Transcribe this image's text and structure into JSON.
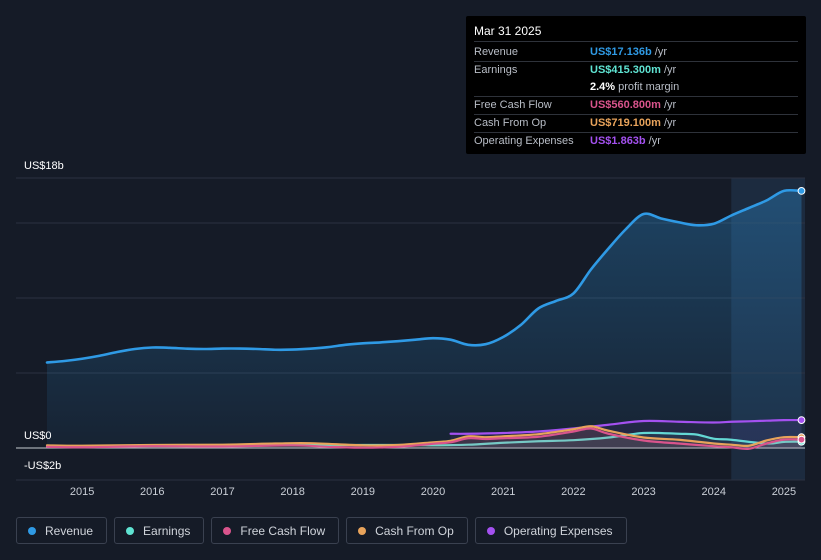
{
  "tooltip": {
    "date": "Mar 31 2025",
    "rows": [
      {
        "label": "Revenue",
        "value": "US$17.136b",
        "unit": "/yr",
        "color": "#2f9ae5"
      },
      {
        "label": "Earnings",
        "value": "US$415.300m",
        "unit": "/yr",
        "color": "#5fe3d2"
      },
      {
        "label": "",
        "value": "2.4%",
        "unit": "profit margin",
        "color": "#ffffff"
      },
      {
        "label": "Free Cash Flow",
        "value": "US$560.800m",
        "unit": "/yr",
        "color": "#d9548c"
      },
      {
        "label": "Cash From Op",
        "value": "US$719.100m",
        "unit": "/yr",
        "color": "#e8a35b"
      },
      {
        "label": "Operating Expenses",
        "value": "US$1.863b",
        "unit": "/yr",
        "color": "#a451f0"
      }
    ]
  },
  "legend": [
    {
      "label": "Revenue",
      "color": "#2f9ae5"
    },
    {
      "label": "Earnings",
      "color": "#5fe3d2"
    },
    {
      "label": "Free Cash Flow",
      "color": "#d9548c"
    },
    {
      "label": "Cash From Op",
      "color": "#e8a35b"
    },
    {
      "label": "Operating Expenses",
      "color": "#a451f0"
    }
  ],
  "chart_data": {
    "type": "line",
    "title": "",
    "xlabel": "",
    "ylabel": "",
    "y_axis_labels": {
      "top": "US$18b",
      "zero": "US$0",
      "bottom": "-US$2b"
    },
    "ylim": [
      -2,
      18
    ],
    "xlim": [
      2014.5,
      2025.3
    ],
    "x_ticks": [
      "2015",
      "2016",
      "2017",
      "2018",
      "2019",
      "2020",
      "2021",
      "2022",
      "2023",
      "2024",
      "2025"
    ],
    "forecast_shade_start": 2024.25,
    "series": [
      {
        "name": "Revenue",
        "color": "#2f9ae5",
        "area": true,
        "x": [
          2014.5,
          2014.75,
          2015,
          2015.25,
          2015.5,
          2015.75,
          2016,
          2016.25,
          2016.5,
          2016.75,
          2017,
          2017.25,
          2017.5,
          2017.75,
          2018,
          2018.25,
          2018.5,
          2018.75,
          2019,
          2019.25,
          2019.5,
          2019.75,
          2020,
          2020.25,
          2020.5,
          2020.75,
          2021,
          2021.25,
          2021.5,
          2021.75,
          2022,
          2022.25,
          2022.5,
          2022.75,
          2023,
          2023.25,
          2023.5,
          2023.75,
          2024,
          2024.25,
          2024.5,
          2024.75,
          2025,
          2025.25
        ],
        "y": [
          5.7,
          5.8,
          5.95,
          6.15,
          6.4,
          6.6,
          6.7,
          6.68,
          6.62,
          6.6,
          6.63,
          6.63,
          6.6,
          6.55,
          6.56,
          6.62,
          6.72,
          6.88,
          6.98,
          7.04,
          7.12,
          7.22,
          7.32,
          7.22,
          6.88,
          6.92,
          7.4,
          8.2,
          9.3,
          9.8,
          10.3,
          11.9,
          13.3,
          14.6,
          15.6,
          15.3,
          15.05,
          14.85,
          14.95,
          15.5,
          16.0,
          16.5,
          17.14,
          17.14
        ]
      },
      {
        "name": "Earnings",
        "color": "#5fe3d2",
        "x": [
          2014.5,
          2015,
          2016,
          2017,
          2018,
          2019,
          2019.75,
          2020,
          2020.5,
          2021,
          2021.5,
          2022,
          2022.5,
          2023,
          2023.5,
          2023.75,
          2024,
          2024.25,
          2024.75,
          2025,
          2025.25
        ],
        "y": [
          0.12,
          0.13,
          0.15,
          0.17,
          0.19,
          0.2,
          0.2,
          0.18,
          0.22,
          0.35,
          0.45,
          0.52,
          0.7,
          1.0,
          0.95,
          0.9,
          0.62,
          0.55,
          0.3,
          0.41,
          0.42
        ]
      },
      {
        "name": "Free Cash Flow",
        "color": "#d9548c",
        "x": [
          2014.5,
          2015,
          2016,
          2017,
          2018,
          2018.5,
          2019,
          2019.5,
          2020,
          2020.25,
          2020.5,
          2020.75,
          2021,
          2021.5,
          2022,
          2022.25,
          2022.5,
          2023,
          2023.5,
          2024,
          2024.25,
          2024.5,
          2024.75,
          2025,
          2025.25
        ],
        "y": [
          0.08,
          0.05,
          0.12,
          0.1,
          0.18,
          0.08,
          0.02,
          0.08,
          0.28,
          0.38,
          0.65,
          0.6,
          0.65,
          0.75,
          1.1,
          1.3,
          0.95,
          0.5,
          0.3,
          0.12,
          0.05,
          -0.05,
          0.3,
          0.56,
          0.56
        ]
      },
      {
        "name": "Cash From Op",
        "color": "#e8a35b",
        "x": [
          2014.5,
          2015,
          2016,
          2017,
          2017.75,
          2018.25,
          2019,
          2019.5,
          2020,
          2020.25,
          2020.5,
          2020.75,
          2021,
          2021.5,
          2022,
          2022.25,
          2022.5,
          2023,
          2023.5,
          2024,
          2024.25,
          2024.5,
          2024.75,
          2025,
          2025.25
        ],
        "y": [
          0.18,
          0.15,
          0.2,
          0.22,
          0.3,
          0.32,
          0.18,
          0.2,
          0.38,
          0.48,
          0.78,
          0.72,
          0.78,
          0.92,
          1.25,
          1.45,
          1.15,
          0.7,
          0.55,
          0.3,
          0.22,
          0.15,
          0.5,
          0.72,
          0.72
        ]
      },
      {
        "name": "Operating Expenses",
        "color": "#a451f0",
        "x": [
          2020.25,
          2020.5,
          2021,
          2021.5,
          2022,
          2022.5,
          2023,
          2023.5,
          2024,
          2024.25,
          2024.5,
          2024.75,
          2025,
          2025.25
        ],
        "y": [
          0.95,
          0.95,
          1.0,
          1.1,
          1.3,
          1.55,
          1.8,
          1.75,
          1.7,
          1.75,
          1.78,
          1.82,
          1.86,
          1.86
        ]
      }
    ]
  }
}
